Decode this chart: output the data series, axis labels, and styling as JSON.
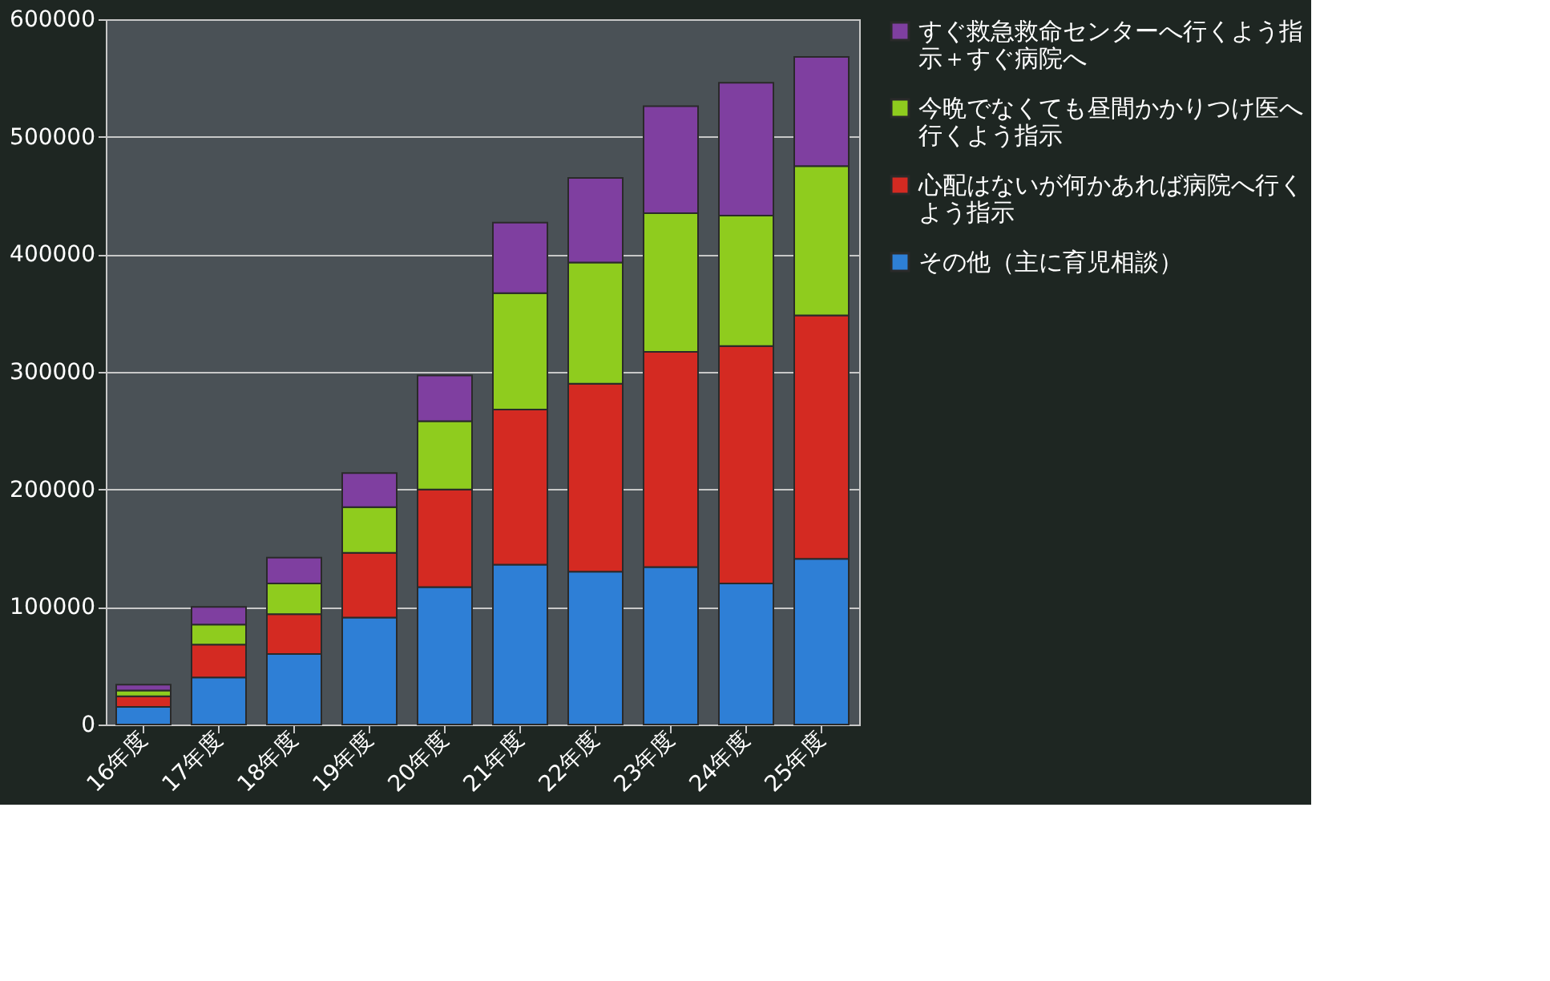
{
  "chart_data": {
    "type": "bar",
    "stacked": true,
    "categories": [
      "16年度",
      "17年度",
      "18年度",
      "19年度",
      "20年度",
      "21年度",
      "22年度",
      "23年度",
      "24年度",
      "25年度"
    ],
    "series": [
      {
        "name": "その他（主に育児相談）",
        "color": "#2e7fd6",
        "values": [
          15000,
          40000,
          60000,
          91000,
          117000,
          136000,
          130000,
          134000,
          120000,
          141000
        ]
      },
      {
        "name": "心配はないが何かあれば病院へ行くよう指示",
        "color": "#d42a22",
        "values": [
          9000,
          28000,
          34000,
          55000,
          83000,
          132000,
          160000,
          183000,
          202000,
          207000
        ]
      },
      {
        "name": "今晩でなくても昼間かかりつけ医へ行くよう指示",
        "color": "#8fcc1e",
        "values": [
          5000,
          17000,
          26000,
          39000,
          58000,
          99000,
          103000,
          118000,
          111000,
          127000
        ]
      },
      {
        "name": "すぐ救急救命センターへ行くよう指示＋すぐ病院へ",
        "color": "#7f3fa0",
        "values": [
          5000,
          15000,
          22000,
          29000,
          39000,
          60000,
          72000,
          91000,
          113000,
          93000
        ]
      }
    ],
    "ylim": [
      0,
      600000
    ],
    "yticks": [
      0,
      100000,
      200000,
      300000,
      400000,
      500000,
      600000
    ],
    "grid": "y",
    "legend": "right"
  }
}
